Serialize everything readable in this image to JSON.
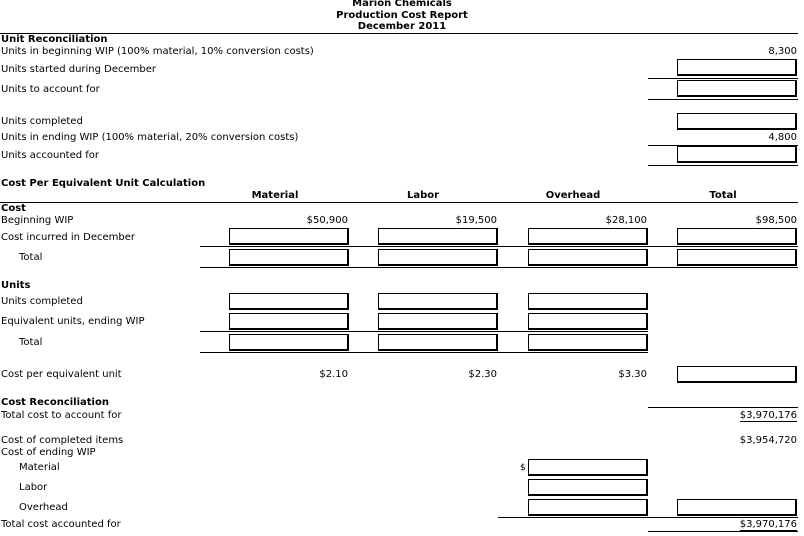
{
  "header": {
    "company": "Marion Chemicals",
    "report": "Production Cost Report",
    "period": "December 2011"
  },
  "unit_reconciliation": {
    "heading": "Unit Reconciliation",
    "beginning_wip_label": "Units in beginning WIP (100% material, 10% conversion costs)",
    "beginning_wip_value": "8,300",
    "started_label": "Units started during December",
    "to_account_label": "Units to account for",
    "completed_label": "Units completed",
    "ending_wip_label": "Units in ending WIP (100% material, 20% conversion costs)",
    "ending_wip_value": "4,800",
    "accounted_label": "Units accounted for"
  },
  "cost_per_eu": {
    "heading": "Cost Per Equivalent Unit Calculation",
    "columns": [
      "Material",
      "Labor",
      "Overhead",
      "Total"
    ],
    "cost_heading": "Cost",
    "beginning_wip_label": "Beginning WIP",
    "beginning_wip_values": [
      "$50,900",
      "$19,500",
      "$28,100",
      "$98,500"
    ],
    "incurred_label": "Cost incurred in December",
    "total_label": "Total",
    "units_heading": "Units",
    "units_completed_label": "Units completed",
    "eu_ending_label": "Equivalent units, ending WIP",
    "units_total_label": "Total",
    "cpeu_label": "Cost per equivalent unit",
    "cpeu_values": [
      "$2.10",
      "$2.30",
      "$3.30"
    ]
  },
  "cost_reconciliation": {
    "heading": "Cost Reconciliation",
    "total_to_account_label": "Total cost to account for",
    "total_to_account_value": "$3,970,176",
    "completed_label": "Cost of completed items",
    "completed_value": "$3,954,720",
    "ending_wip_label": "Cost of ending WIP",
    "material_label": "Material",
    "dollar_sign": "$",
    "labor_label": "Labor",
    "overhead_label": "Overhead",
    "accounted_label": "Total cost accounted for",
    "accounted_value": "$3,970,176"
  }
}
